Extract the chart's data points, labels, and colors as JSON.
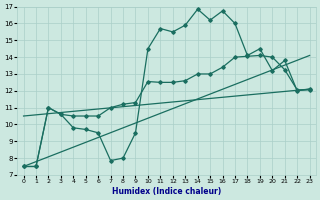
{
  "xlabel": "Humidex (Indice chaleur)",
  "bg_color": "#cce8e0",
  "grid_color": "#aacfc8",
  "line_color": "#1a6e60",
  "line1_x": [
    0,
    1,
    2,
    3,
    4,
    5,
    6,
    7,
    8,
    9,
    10,
    11,
    12,
    13,
    14,
    15,
    16,
    17,
    18,
    19,
    20,
    21,
    22,
    23
  ],
  "line1_y": [
    7.5,
    7.5,
    11.0,
    10.6,
    9.8,
    9.7,
    9.5,
    7.85,
    8.0,
    9.5,
    14.5,
    15.7,
    15.5,
    15.9,
    16.85,
    16.2,
    16.75,
    16.0,
    14.1,
    14.5,
    13.2,
    13.8,
    12.0,
    12.1
  ],
  "line2_x": [
    0,
    1,
    2,
    3,
    4,
    5,
    6,
    7,
    8,
    9,
    10,
    11,
    12,
    13,
    14,
    15,
    16,
    17,
    18,
    19,
    20,
    21,
    22,
    23
  ],
  "line2_y": [
    7.5,
    7.5,
    11.0,
    10.6,
    10.5,
    10.5,
    10.5,
    11.0,
    11.2,
    11.3,
    12.55,
    12.5,
    12.5,
    12.6,
    13.0,
    13.0,
    13.4,
    14.0,
    14.05,
    14.1,
    14.0,
    13.25,
    12.05,
    12.05
  ],
  "line3_x": [
    0,
    23
  ],
  "line3_y": [
    7.5,
    14.1
  ],
  "line4_x": [
    0,
    23
  ],
  "line4_y": [
    10.5,
    12.1
  ],
  "xlim": [
    -0.5,
    23.5
  ],
  "ylim": [
    7,
    17
  ],
  "xticks": [
    0,
    1,
    2,
    3,
    4,
    5,
    6,
    7,
    8,
    9,
    10,
    11,
    12,
    13,
    14,
    15,
    16,
    17,
    18,
    19,
    20,
    21,
    22,
    23
  ],
  "yticks": [
    7,
    8,
    9,
    10,
    11,
    12,
    13,
    14,
    15,
    16,
    17
  ]
}
